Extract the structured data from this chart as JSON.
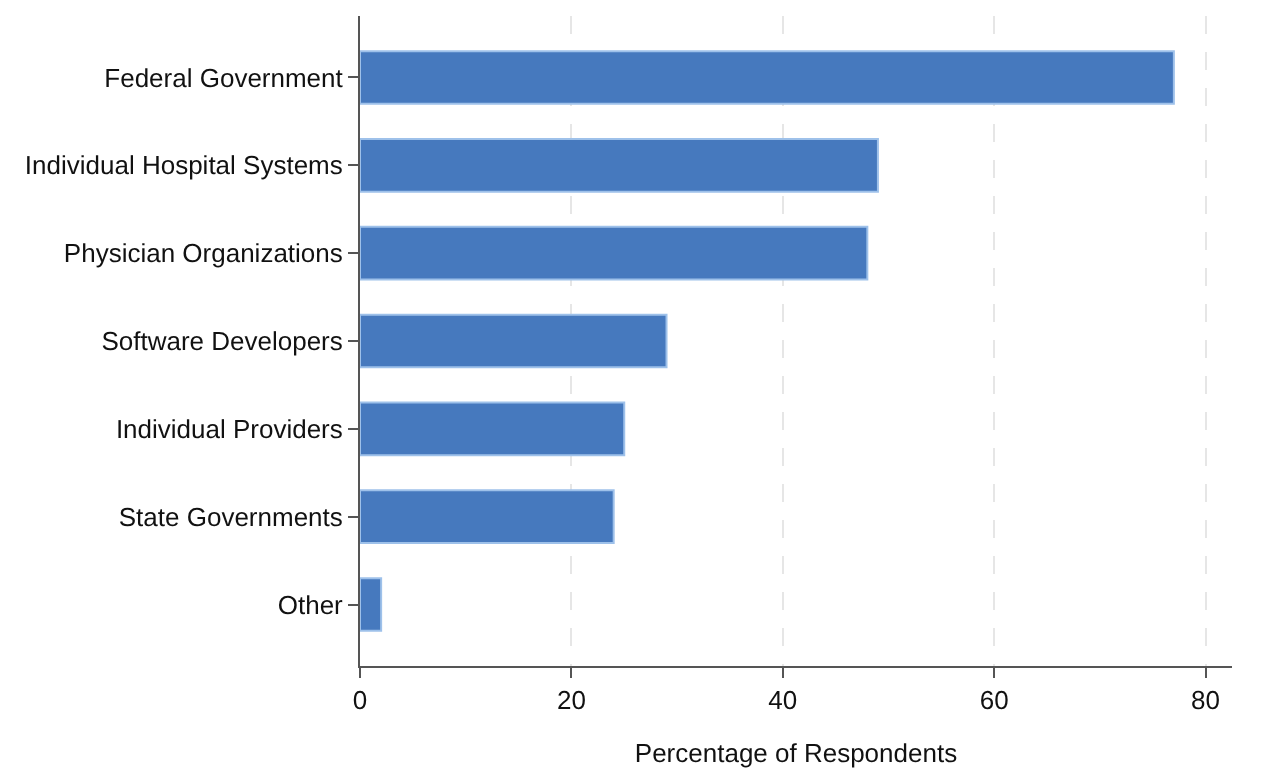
{
  "chart_data": {
    "type": "bar",
    "orientation": "horizontal",
    "xlabel": "Percentage of Respondents",
    "categories": [
      "Federal Government",
      "Individual Hospital Systems",
      "Physician Organizations",
      "Software Developers",
      "Individual Providers",
      "State Governments",
      "Other"
    ],
    "values": [
      77,
      49,
      48,
      29,
      25,
      24,
      2
    ],
    "color": "#4679be",
    "xlim": [
      0,
      82.5
    ],
    "xticks": [
      0,
      20,
      40,
      60,
      80
    ],
    "grid": "x",
    "line_style": "dashed"
  }
}
